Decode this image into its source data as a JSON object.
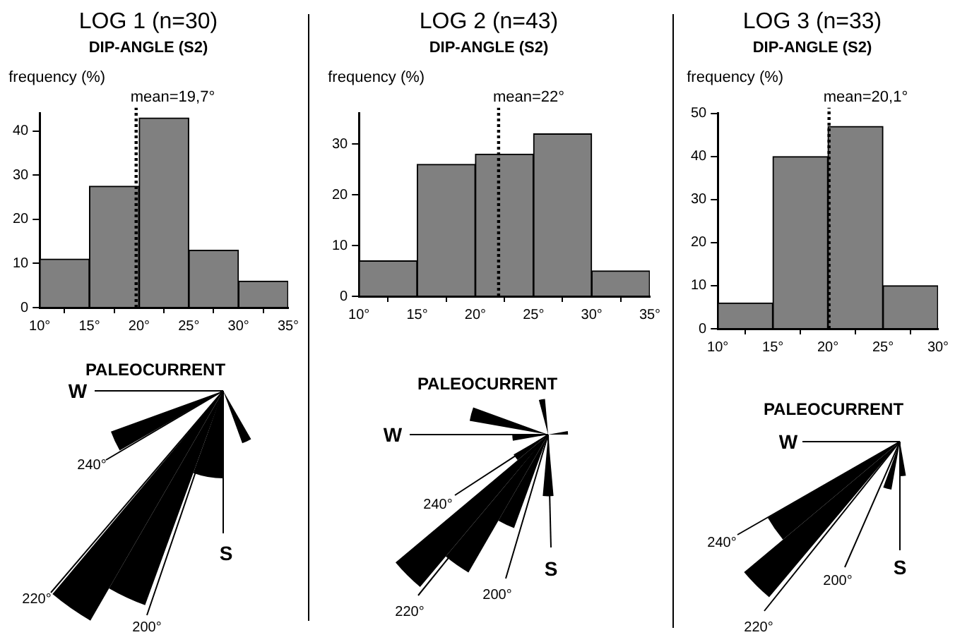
{
  "chart_data": [
    {
      "type": "histogram",
      "title": "LOG 1 (n=30)",
      "subtitle": "DIP-ANGLE (S2)",
      "ylabel": "frequency (%)",
      "bins": [
        10,
        15,
        20,
        25,
        30,
        35
      ],
      "values": [
        11,
        27.5,
        43,
        13,
        6
      ],
      "color": "#808080",
      "xlim": [
        10,
        35
      ],
      "xticks": [
        {
          "value": 10,
          "label": "10°"
        },
        {
          "value": 15,
          "label": "15°"
        },
        {
          "value": 20,
          "label": "20°"
        },
        {
          "value": 25,
          "label": "25°"
        },
        {
          "value": 30,
          "label": "30°"
        },
        {
          "value": 35,
          "label": "35°"
        }
      ],
      "ylim": [
        0,
        44
      ],
      "yticks": [
        0,
        10,
        20,
        30,
        40
      ],
      "ref_lines": [
        {
          "axis": "x",
          "value": 19.7,
          "label": "mean=19,7°",
          "line_style": "dotted"
        }
      ]
    },
    {
      "type": "histogram",
      "title": "LOG 2 (n=43)",
      "subtitle": "DIP-ANGLE (S2)",
      "ylabel": "frequency (%)",
      "bins": [
        10,
        15,
        20,
        25,
        30,
        35
      ],
      "values": [
        7,
        26,
        28,
        32,
        5
      ],
      "color": "#808080",
      "xlim": [
        10,
        35
      ],
      "xticks": [
        {
          "value": 10,
          "label": "10°"
        },
        {
          "value": 15,
          "label": "15°"
        },
        {
          "value": 20,
          "label": "20°"
        },
        {
          "value": 25,
          "label": "25°"
        },
        {
          "value": 30,
          "label": "30°"
        },
        {
          "value": 35,
          "label": "35°"
        }
      ],
      "ylim": [
        0,
        36
      ],
      "yticks": [
        0,
        10,
        20,
        30
      ],
      "ref_lines": [
        {
          "axis": "x",
          "value": 22,
          "label": "mean=22°",
          "line_style": "dotted"
        }
      ]
    },
    {
      "type": "histogram",
      "title": "LOG 3 (n=33)",
      "subtitle": "DIP-ANGLE (S2)",
      "ylabel": "frequency (%)",
      "bins": [
        10,
        15,
        20,
        25,
        30
      ],
      "values": [
        6,
        40,
        47,
        10
      ],
      "color": "#808080",
      "xlim": [
        10,
        30
      ],
      "xticks": [
        {
          "value": 10,
          "label": "10°"
        },
        {
          "value": 15,
          "label": "15°"
        },
        {
          "value": 20,
          "label": "20°"
        },
        {
          "value": 25,
          "label": "25°"
        },
        {
          "value": 30,
          "label": "30°"
        }
      ],
      "ylim": [
        0,
        50
      ],
      "yticks": [
        0,
        10,
        20,
        30,
        40,
        50
      ],
      "ref_lines": [
        {
          "axis": "x",
          "value": 20.1,
          "label": "mean=20,1°",
          "line_style": "dotted"
        }
      ]
    },
    {
      "type": "other",
      "title": "PALEOCURRENT",
      "annotations": [
        "W",
        "S",
        "240°",
        "220°",
        "200°"
      ]
    },
    {
      "type": "other",
      "title": "PALEOCURRENT",
      "annotations": [
        "W",
        "S",
        "240°",
        "220°",
        "200°"
      ]
    },
    {
      "type": "other",
      "title": "PALEOCURRENT",
      "annotations": [
        "W",
        "S",
        "240°",
        "220°",
        "200°"
      ]
    }
  ]
}
